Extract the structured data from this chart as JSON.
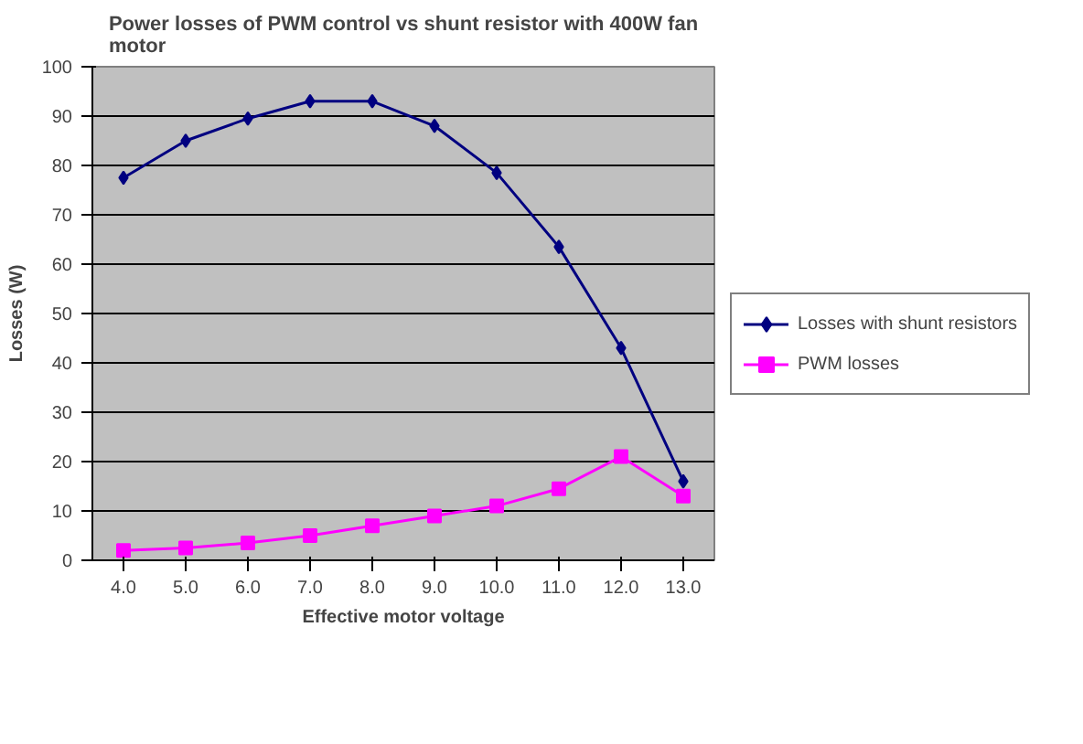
{
  "chart_data": {
    "type": "line",
    "title": "Power losses of PWM control vs shunt resistor with 400W fan motor",
    "xlabel": "Effective motor voltage",
    "ylabel": "Losses (W)",
    "categories": [
      "4.0",
      "5.0",
      "6.0",
      "7.0",
      "8.0",
      "9.0",
      "10.0",
      "11.0",
      "12.0",
      "13.0"
    ],
    "series": [
      {
        "name": "Losses with shunt resistors",
        "color": "#000080",
        "marker": "diamond",
        "values": [
          77.5,
          85,
          89.5,
          93,
          93,
          88,
          78.5,
          63.5,
          43,
          16
        ]
      },
      {
        "name": "PWM losses",
        "color": "#ff00ff",
        "marker": "square",
        "values": [
          2,
          2.5,
          3.5,
          5,
          7,
          9,
          11,
          14.5,
          21,
          13
        ]
      }
    ],
    "ylim": [
      0,
      100
    ],
    "yticks": [
      0,
      10,
      20,
      30,
      40,
      50,
      60,
      70,
      80,
      90,
      100
    ],
    "grid": "y",
    "legend": "right",
    "line_style": "solid"
  }
}
